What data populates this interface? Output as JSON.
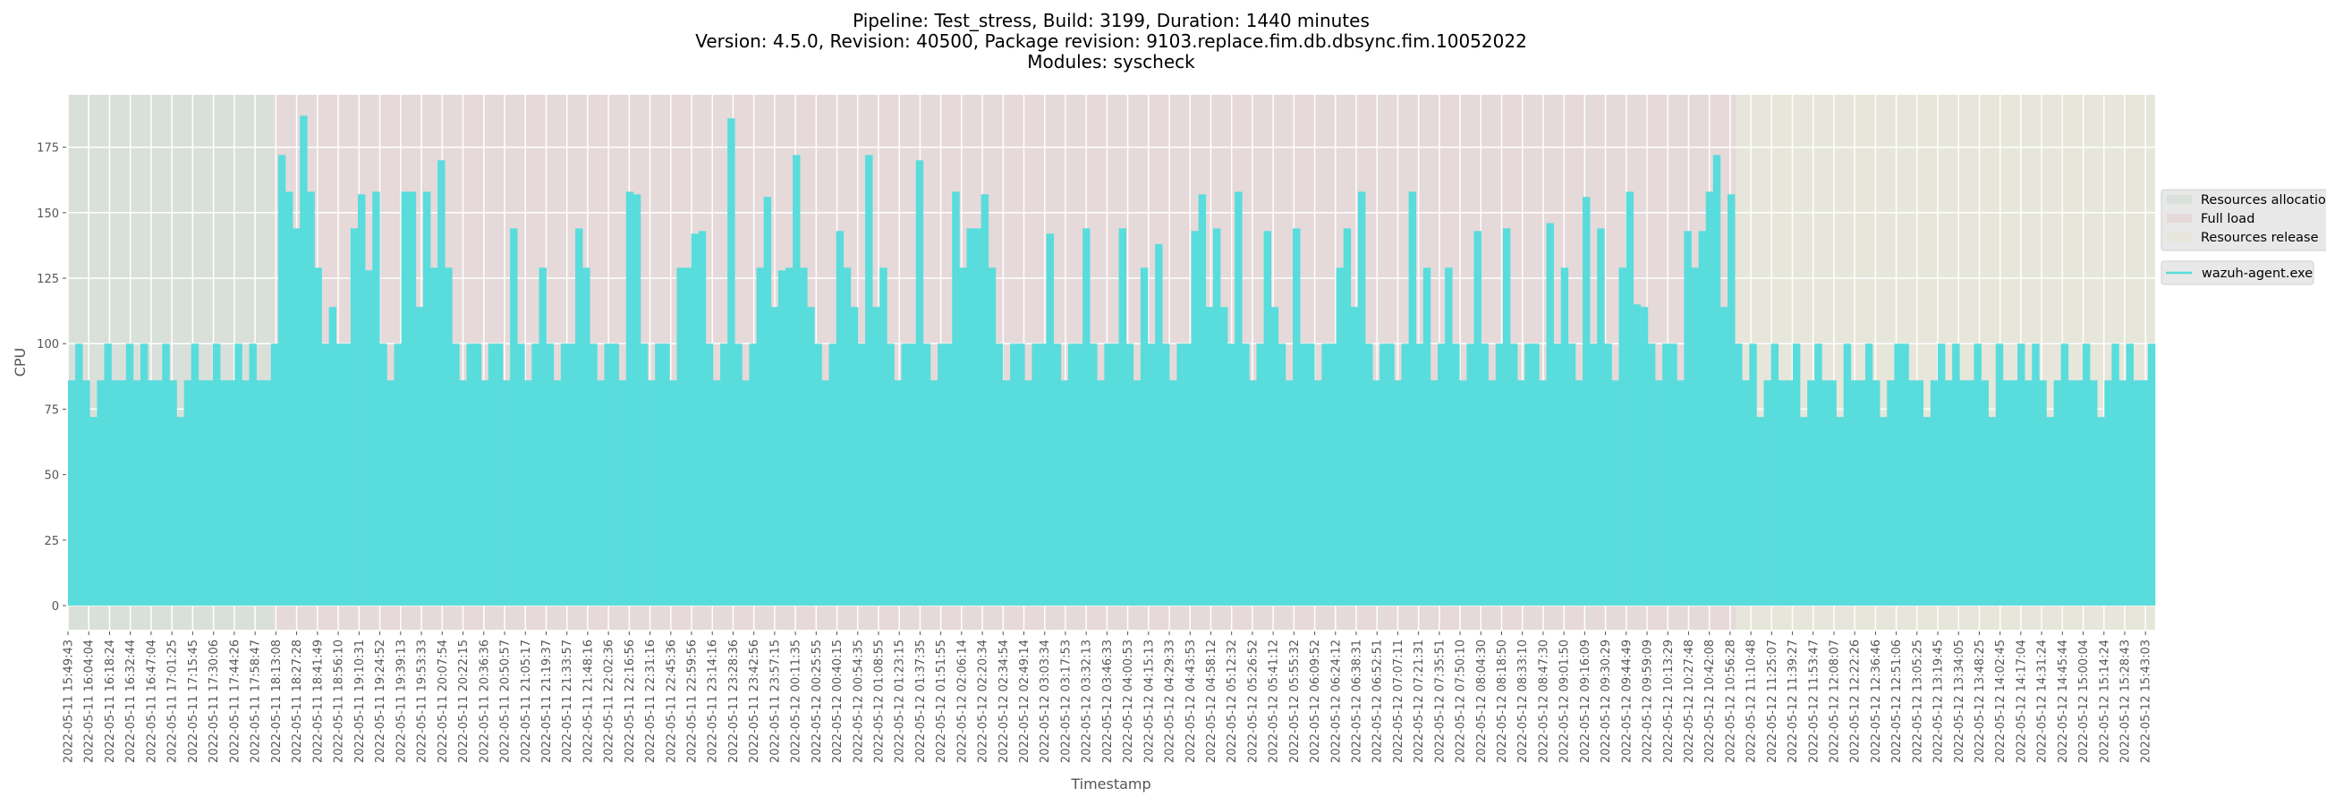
{
  "chart_data": {
    "type": "area",
    "title": [
      "Pipeline: Test_stress, Build: 3199, Duration: 1440 minutes",
      "Version: 4.5.0, Revision: 40500, Package revision: 9103.replace.fim.db.dbsync.fim.10052022",
      "Modules: syscheck"
    ],
    "xlabel": "Timestamp",
    "ylabel": "CPU",
    "ylim": [
      -9.2,
      195
    ],
    "yticks": [
      0,
      25,
      50,
      75,
      100,
      125,
      150,
      175
    ],
    "grid": true,
    "xlim": [
      "2022-05-11 15:49:43",
      "2022-05-12 15:49:43"
    ],
    "xticks": [
      "2022-05-11 15:49:43",
      "2022-05-11 16:04:04",
      "2022-05-11 16:18:24",
      "2022-05-11 16:32:44",
      "2022-05-11 16:47:04",
      "2022-05-11 17:01:25",
      "2022-05-11 17:15:45",
      "2022-05-11 17:30:06",
      "2022-05-11 17:44:26",
      "2022-05-11 17:58:47",
      "2022-05-11 18:13:08",
      "2022-05-11 18:27:28",
      "2022-05-11 18:41:49",
      "2022-05-11 18:56:10",
      "2022-05-11 19:10:31",
      "2022-05-11 19:24:52",
      "2022-05-11 19:39:13",
      "2022-05-11 19:53:33",
      "2022-05-11 20:07:54",
      "2022-05-11 20:22:15",
      "2022-05-11 20:36:36",
      "2022-05-11 20:50:57",
      "2022-05-11 21:05:17",
      "2022-05-11 21:19:37",
      "2022-05-11 21:33:57",
      "2022-05-11 21:48:16",
      "2022-05-11 22:02:36",
      "2022-05-11 22:16:56",
      "2022-05-11 22:31:16",
      "2022-05-11 22:45:36",
      "2022-05-11 22:59:56",
      "2022-05-11 23:14:16",
      "2022-05-11 23:28:36",
      "2022-05-11 23:42:56",
      "2022-05-11 23:57:15",
      "2022-05-12 00:11:35",
      "2022-05-12 00:25:55",
      "2022-05-12 00:40:15",
      "2022-05-12 00:54:35",
      "2022-05-12 01:08:55",
      "2022-05-12 01:23:15",
      "2022-05-12 01:37:35",
      "2022-05-12 01:51:55",
      "2022-05-12 02:06:14",
      "2022-05-12 02:20:34",
      "2022-05-12 02:34:54",
      "2022-05-12 02:49:14",
      "2022-05-12 03:03:34",
      "2022-05-12 03:17:53",
      "2022-05-12 03:32:13",
      "2022-05-12 03:46:33",
      "2022-05-12 04:00:53",
      "2022-05-12 04:15:13",
      "2022-05-12 04:29:33",
      "2022-05-12 04:43:53",
      "2022-05-12 04:58:12",
      "2022-05-12 05:12:32",
      "2022-05-12 05:26:52",
      "2022-05-12 05:41:12",
      "2022-05-12 05:55:32",
      "2022-05-12 06:09:52",
      "2022-05-12 06:24:12",
      "2022-05-12 06:38:31",
      "2022-05-12 06:52:51",
      "2022-05-12 07:07:11",
      "2022-05-12 07:21:31",
      "2022-05-12 07:35:51",
      "2022-05-12 07:50:10",
      "2022-05-12 08:04:30",
      "2022-05-12 08:18:50",
      "2022-05-12 08:33:10",
      "2022-05-12 08:47:30",
      "2022-05-12 09:01:50",
      "2022-05-12 09:16:09",
      "2022-05-12 09:30:29",
      "2022-05-12 09:44:49",
      "2022-05-12 09:59:09",
      "2022-05-12 10:13:29",
      "2022-05-12 10:27:48",
      "2022-05-12 10:42:08",
      "2022-05-12 10:56:28",
      "2022-05-12 11:10:48",
      "2022-05-12 11:25:07",
      "2022-05-12 11:39:27",
      "2022-05-12 11:53:47",
      "2022-05-12 12:08:07",
      "2022-05-12 12:22:26",
      "2022-05-12 12:36:46",
      "2022-05-12 12:51:06",
      "2022-05-12 13:05:25",
      "2022-05-12 13:19:45",
      "2022-05-12 13:34:05",
      "2022-05-12 13:48:25",
      "2022-05-12 14:02:45",
      "2022-05-12 14:17:04",
      "2022-05-12 14:31:24",
      "2022-05-12 14:45:44",
      "2022-05-12 15:00:04",
      "2022-05-12 15:14:24",
      "2022-05-12 15:28:43",
      "2022-05-12 15:43:03"
    ],
    "regions": [
      {
        "name": "Resources allocation",
        "start": "2022-05-11 15:49:43",
        "end": "2022-05-11 18:12:00",
        "color": "#d9e0da"
      },
      {
        "name": "Full load",
        "start": "2022-05-11 18:12:00",
        "end": "2022-05-12 11:00:45",
        "color": "#e5d9d9"
      },
      {
        "name": "Resources release",
        "start": "2022-05-12 11:00:45",
        "end": "2022-05-12 15:49:43",
        "color": "#e6e6da"
      }
    ],
    "legend_placement": "right-outside",
    "series": [
      {
        "name": "wazuh-agent.exe",
        "color": "#59dcdc",
        "x_start": "2022-05-11 15:49:43",
        "x_step_minutes": 5,
        "values": [
          86,
          100,
          86,
          72,
          86,
          100,
          86,
          86,
          100,
          86,
          100,
          86,
          86,
          100,
          86,
          72,
          86,
          100,
          86,
          86,
          100,
          86,
          86,
          100,
          86,
          100,
          86,
          86,
          100,
          172,
          158,
          144,
          187,
          158,
          129,
          100,
          114,
          100,
          100,
          144,
          157,
          128,
          158,
          100,
          86,
          100,
          158,
          158,
          114,
          158,
          129,
          170,
          129,
          100,
          86,
          100,
          100,
          86,
          100,
          100,
          86,
          144,
          100,
          86,
          100,
          129,
          100,
          86,
          100,
          100,
          144,
          129,
          100,
          86,
          100,
          100,
          86,
          158,
          157,
          100,
          86,
          100,
          100,
          86,
          129,
          129,
          142,
          143,
          100,
          86,
          100,
          186,
          100,
          86,
          100,
          129,
          156,
          114,
          128,
          129,
          172,
          129,
          114,
          100,
          86,
          100,
          143,
          129,
          114,
          100,
          172,
          114,
          129,
          100,
          86,
          100,
          100,
          170,
          100,
          86,
          100,
          100,
          158,
          129,
          144,
          144,
          157,
          129,
          100,
          86,
          100,
          100,
          86,
          100,
          100,
          142,
          100,
          86,
          100,
          100,
          144,
          100,
          86,
          100,
          100,
          144,
          100,
          86,
          129,
          100,
          138,
          100,
          86,
          100,
          100,
          143,
          157,
          114,
          144,
          114,
          100,
          158,
          100,
          86,
          100,
          143,
          114,
          100,
          86,
          144,
          100,
          100,
          86,
          100,
          100,
          129,
          144,
          114,
          158,
          100,
          86,
          100,
          100,
          86,
          100,
          158,
          100,
          129,
          86,
          100,
          129,
          100,
          86,
          100,
          143,
          100,
          86,
          100,
          144,
          100,
          86,
          100,
          100,
          86,
          146,
          100,
          129,
          100,
          86,
          156,
          100,
          144,
          100,
          86,
          129,
          158,
          115,
          114,
          100,
          86,
          100,
          100,
          86,
          143,
          129,
          143,
          158,
          172,
          114,
          157,
          100,
          86,
          100,
          72,
          86,
          100,
          86,
          86,
          100,
          72,
          86,
          100,
          86,
          86,
          72,
          100,
          86,
          86,
          100,
          86,
          72,
          86,
          100,
          100,
          86,
          86,
          72,
          86,
          100,
          86,
          100,
          86,
          86,
          100,
          86,
          72,
          100,
          86,
          86,
          100,
          86,
          100,
          86,
          72,
          86,
          100,
          86,
          86,
          100,
          86,
          72,
          86,
          100,
          86,
          100,
          86,
          86,
          100
        ]
      }
    ]
  }
}
